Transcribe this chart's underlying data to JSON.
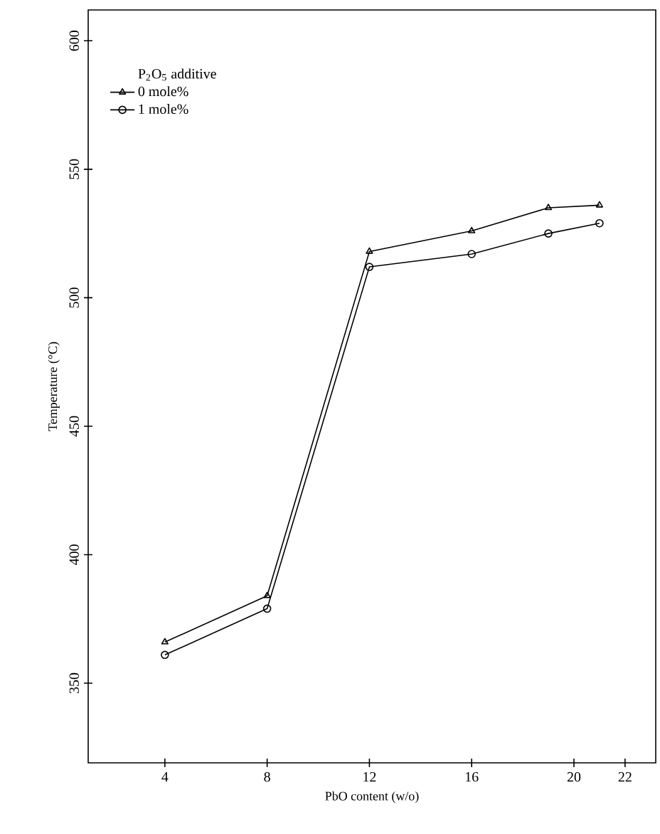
{
  "chart_data": {
    "type": "line",
    "xlabel": "PbO content (w/o)",
    "ylabel": "Temperature (°C)",
    "legend_title": "P$_{2}$O$_{5}$ additive",
    "legend": "top left",
    "xlim": [
      1,
      23.2
    ],
    "ylim": [
      319,
      612
    ],
    "xticks": [
      4,
      8,
      12,
      16,
      20,
      22
    ],
    "yticks": [
      350,
      400,
      450,
      500,
      550,
      600
    ],
    "grid": false,
    "line_style": "solid",
    "series": [
      {
        "name": "0 mole%",
        "color": "#000000",
        "marker": "triangle",
        "x": [
          4,
          8,
          12,
          16,
          19,
          21
        ],
        "values": [
          366,
          384,
          518,
          526,
          535,
          536
        ]
      },
      {
        "name": "1 mole%",
        "color": "#000000",
        "marker": "circle",
        "x": [
          4,
          8,
          12,
          16,
          19,
          21
        ],
        "values": [
          361,
          379,
          512,
          517,
          525,
          529
        ]
      }
    ]
  }
}
